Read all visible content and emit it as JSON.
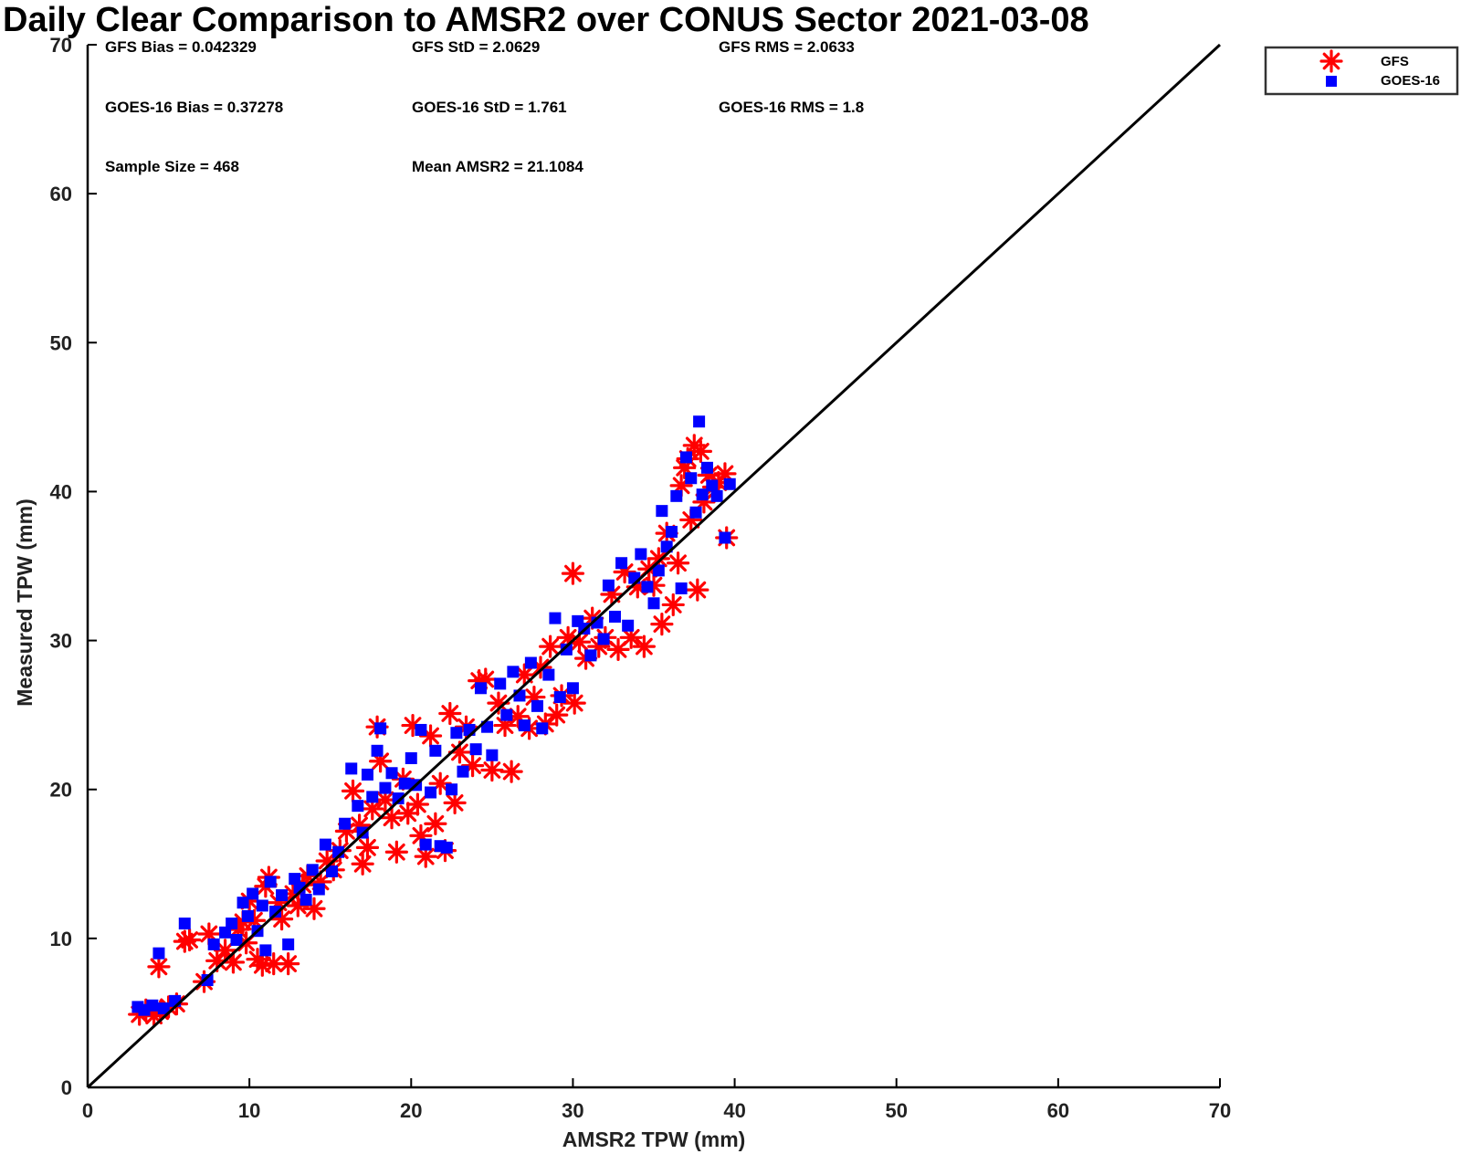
{
  "chart_data": {
    "type": "scatter",
    "title": "Daily Clear Comparison to AMSR2 over CONUS Sector 2021-03-08",
    "xlabel": "AMSR2 TPW (mm)",
    "ylabel": "Measured TPW (mm)",
    "xlim": [
      0,
      70
    ],
    "ylim": [
      0,
      70
    ],
    "xticks": [
      "0",
      "10",
      "20",
      "30",
      "40",
      "50",
      "60",
      "70"
    ],
    "yticks": [
      "0",
      "10",
      "20",
      "30",
      "40",
      "50",
      "60",
      "70"
    ],
    "reference_line": {
      "name": "1:1 line",
      "x": [
        0,
        70
      ],
      "y": [
        0,
        70
      ],
      "color": "#000000"
    },
    "stats": {
      "gfs_bias": "GFS Bias = 0.042329",
      "gfs_std": "GFS StD = 2.0629",
      "gfs_rms": "GFS RMS = 2.0633",
      "goes_bias": "GOES-16 Bias = 0.37278",
      "goes_std": "GOES-16 StD = 1.761",
      "goes_rms": "GOES-16 RMS = 1.8",
      "sample_size": "Sample Size = 468",
      "mean_amsr2": "Mean AMSR2 = 21.1084"
    },
    "legend": {
      "placement": "outside top-right",
      "entries": [
        {
          "name": "GFS",
          "marker": "asterisk",
          "color": "#ff0000"
        },
        {
          "name": "GOES-16",
          "marker": "square",
          "color": "#0000ff"
        }
      ]
    },
    "series": [
      {
        "name": "GFS",
        "marker": "asterisk",
        "color": "#ff0000",
        "points": [
          [
            3.2,
            4.9
          ],
          [
            3.6,
            5.2
          ],
          [
            4.1,
            4.8
          ],
          [
            4.5,
            5.1
          ],
          [
            4.4,
            8.1
          ],
          [
            5.0,
            5.4
          ],
          [
            5.5,
            5.6
          ],
          [
            6.0,
            9.8
          ],
          [
            6.3,
            9.9
          ],
          [
            7.2,
            7.1
          ],
          [
            7.5,
            10.3
          ],
          [
            8.0,
            8.5
          ],
          [
            8.5,
            9.2
          ],
          [
            9.0,
            8.4
          ],
          [
            9.3,
            10.6
          ],
          [
            9.6,
            11.1
          ],
          [
            9.8,
            9.7
          ],
          [
            10.0,
            12.5
          ],
          [
            10.3,
            11.2
          ],
          [
            10.5,
            8.6
          ],
          [
            10.8,
            8.2
          ],
          [
            11.0,
            13.5
          ],
          [
            11.2,
            14.1
          ],
          [
            11.5,
            8.3
          ],
          [
            11.8,
            12.4
          ],
          [
            12.0,
            11.3
          ],
          [
            12.4,
            8.3
          ],
          [
            12.7,
            13.0
          ],
          [
            13.0,
            12.2
          ],
          [
            13.3,
            13.6
          ],
          [
            13.6,
            14.2
          ],
          [
            14.0,
            12.0
          ],
          [
            14.4,
            13.8
          ],
          [
            14.8,
            15.2
          ],
          [
            15.2,
            14.6
          ],
          [
            15.6,
            15.9
          ],
          [
            16.0,
            17.2
          ],
          [
            16.4,
            19.9
          ],
          [
            16.8,
            17.6
          ],
          [
            17.0,
            15.0
          ],
          [
            17.3,
            16.1
          ],
          [
            17.6,
            18.7
          ],
          [
            17.9,
            24.2
          ],
          [
            18.1,
            21.9
          ],
          [
            18.4,
            19.3
          ],
          [
            18.8,
            18.1
          ],
          [
            19.1,
            15.8
          ],
          [
            19.5,
            20.7
          ],
          [
            19.8,
            18.4
          ],
          [
            20.1,
            24.3
          ],
          [
            20.4,
            19.0
          ],
          [
            20.6,
            16.9
          ],
          [
            20.9,
            15.5
          ],
          [
            21.2,
            23.6
          ],
          [
            21.5,
            17.7
          ],
          [
            21.8,
            20.4
          ],
          [
            22.1,
            15.9
          ],
          [
            22.4,
            25.1
          ],
          [
            22.7,
            19.1
          ],
          [
            23.0,
            22.5
          ],
          [
            23.4,
            24.2
          ],
          [
            23.8,
            21.6
          ],
          [
            24.2,
            27.3
          ],
          [
            24.6,
            27.4
          ],
          [
            25.0,
            21.3
          ],
          [
            25.4,
            25.8
          ],
          [
            25.8,
            24.3
          ],
          [
            26.2,
            21.2
          ],
          [
            26.6,
            24.9
          ],
          [
            27.0,
            27.7
          ],
          [
            27.3,
            24.1
          ],
          [
            27.6,
            26.2
          ],
          [
            28.0,
            28.2
          ],
          [
            28.3,
            24.4
          ],
          [
            28.6,
            29.6
          ],
          [
            29.0,
            25.0
          ],
          [
            29.3,
            26.3
          ],
          [
            29.7,
            30.2
          ],
          [
            30.0,
            34.5
          ],
          [
            30.1,
            25.8
          ],
          [
            30.4,
            29.9
          ],
          [
            30.8,
            28.8
          ],
          [
            31.2,
            31.5
          ],
          [
            31.6,
            29.6
          ],
          [
            32.0,
            30.2
          ],
          [
            32.4,
            33.1
          ],
          [
            32.8,
            29.4
          ],
          [
            33.2,
            34.6
          ],
          [
            33.6,
            30.2
          ],
          [
            34.0,
            33.6
          ],
          [
            34.4,
            29.6
          ],
          [
            34.7,
            34.8
          ],
          [
            35.0,
            33.7
          ],
          [
            35.3,
            35.5
          ],
          [
            35.5,
            31.1
          ],
          [
            35.8,
            37.2
          ],
          [
            36.2,
            32.4
          ],
          [
            36.5,
            35.2
          ],
          [
            36.7,
            40.4
          ],
          [
            36.9,
            41.6
          ],
          [
            37.1,
            42.2
          ],
          [
            37.3,
            38.1
          ],
          [
            37.5,
            43.1
          ],
          [
            37.7,
            33.4
          ],
          [
            37.9,
            42.7
          ],
          [
            38.1,
            39.3
          ],
          [
            38.4,
            41.1
          ],
          [
            38.7,
            40.3
          ],
          [
            39.0,
            40.6
          ],
          [
            39.4,
            41.2
          ],
          [
            39.5,
            36.9
          ]
        ]
      },
      {
        "name": "GOES-16",
        "marker": "square",
        "color": "#0000ff",
        "points": [
          [
            3.1,
            5.4
          ],
          [
            3.5,
            5.2
          ],
          [
            4.0,
            5.5
          ],
          [
            4.4,
            9.0
          ],
          [
            4.7,
            5.3
          ],
          [
            5.4,
            5.8
          ],
          [
            6.0,
            11.0
          ],
          [
            7.4,
            7.2
          ],
          [
            7.8,
            9.6
          ],
          [
            8.5,
            10.4
          ],
          [
            8.9,
            11.0
          ],
          [
            9.2,
            9.9
          ],
          [
            9.6,
            12.4
          ],
          [
            9.9,
            11.5
          ],
          [
            10.2,
            13.0
          ],
          [
            10.5,
            10.5
          ],
          [
            10.8,
            12.2
          ],
          [
            11.0,
            9.2
          ],
          [
            11.3,
            13.8
          ],
          [
            11.6,
            11.8
          ],
          [
            12.0,
            12.9
          ],
          [
            12.4,
            9.6
          ],
          [
            12.8,
            14.0
          ],
          [
            13.1,
            13.4
          ],
          [
            13.5,
            12.6
          ],
          [
            13.9,
            14.6
          ],
          [
            14.3,
            13.3
          ],
          [
            14.7,
            16.3
          ],
          [
            15.1,
            14.5
          ],
          [
            15.5,
            15.8
          ],
          [
            15.9,
            17.7
          ],
          [
            16.3,
            21.4
          ],
          [
            16.7,
            18.9
          ],
          [
            17.0,
            17.1
          ],
          [
            17.3,
            21.0
          ],
          [
            17.6,
            19.5
          ],
          [
            17.9,
            22.6
          ],
          [
            18.1,
            24.1
          ],
          [
            18.4,
            20.1
          ],
          [
            18.8,
            21.1
          ],
          [
            19.2,
            19.4
          ],
          [
            19.6,
            20.4
          ],
          [
            20.0,
            22.1
          ],
          [
            20.3,
            20.3
          ],
          [
            20.6,
            24.0
          ],
          [
            20.9,
            16.3
          ],
          [
            21.2,
            19.8
          ],
          [
            21.5,
            22.6
          ],
          [
            21.8,
            16.2
          ],
          [
            22.2,
            16.1
          ],
          [
            22.5,
            20.0
          ],
          [
            22.8,
            23.8
          ],
          [
            23.2,
            21.2
          ],
          [
            23.6,
            24.0
          ],
          [
            24.0,
            22.7
          ],
          [
            24.3,
            26.8
          ],
          [
            24.7,
            24.2
          ],
          [
            25.0,
            22.3
          ],
          [
            25.5,
            27.1
          ],
          [
            25.9,
            25.0
          ],
          [
            26.3,
            27.9
          ],
          [
            26.7,
            26.3
          ],
          [
            27.0,
            24.3
          ],
          [
            27.4,
            28.5
          ],
          [
            27.8,
            25.6
          ],
          [
            28.1,
            24.1
          ],
          [
            28.5,
            27.7
          ],
          [
            28.9,
            31.5
          ],
          [
            29.2,
            26.2
          ],
          [
            29.6,
            29.4
          ],
          [
            30.0,
            26.8
          ],
          [
            30.3,
            31.3
          ],
          [
            30.7,
            30.8
          ],
          [
            31.1,
            29.0
          ],
          [
            31.5,
            31.2
          ],
          [
            31.9,
            30.1
          ],
          [
            32.2,
            33.7
          ],
          [
            32.6,
            31.6
          ],
          [
            33.0,
            35.2
          ],
          [
            33.4,
            31.0
          ],
          [
            33.8,
            34.2
          ],
          [
            34.2,
            35.8
          ],
          [
            34.6,
            33.6
          ],
          [
            35.0,
            32.5
          ],
          [
            35.3,
            34.7
          ],
          [
            35.5,
            38.7
          ],
          [
            35.8,
            36.3
          ],
          [
            36.1,
            37.3
          ],
          [
            36.4,
            39.7
          ],
          [
            36.7,
            33.5
          ],
          [
            37.0,
            42.3
          ],
          [
            37.3,
            40.9
          ],
          [
            37.6,
            38.6
          ],
          [
            37.8,
            44.7
          ],
          [
            38.0,
            39.8
          ],
          [
            38.3,
            41.6
          ],
          [
            38.6,
            40.4
          ],
          [
            38.9,
            39.7
          ],
          [
            39.4,
            36.9
          ],
          [
            39.7,
            40.5
          ]
        ]
      }
    ]
  }
}
